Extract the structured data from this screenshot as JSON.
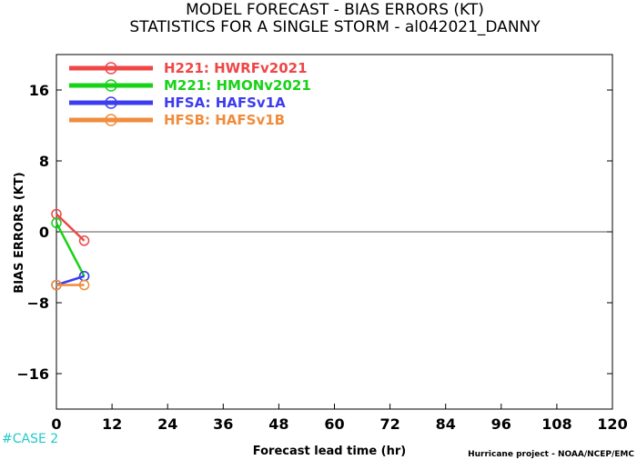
{
  "chart_data": {
    "type": "line",
    "title": "MODEL FORECAST - BIAS ERRORS (KT)",
    "subtitle": "STATISTICS FOR A SINGLE STORM - al042021_DANNY",
    "xlabel": "Forecast lead time (hr)",
    "ylabel": "BIAS ERRORS (KT)",
    "xlim": [
      0,
      120
    ],
    "ylim": [
      -20,
      20
    ],
    "xticks": [
      0,
      12,
      24,
      36,
      48,
      60,
      72,
      84,
      96,
      108,
      120
    ],
    "yticks": [
      -16,
      -8,
      0,
      8,
      16
    ],
    "zero_line": true,
    "grid": false,
    "legend_position": "top-left",
    "series": [
      {
        "name": "H221: HWRFv2021",
        "color": "#f04646",
        "x": [
          0,
          6
        ],
        "y": [
          2,
          -1
        ]
      },
      {
        "name": "M221: HMONv2021",
        "color": "#18d218",
        "x": [
          0,
          6
        ],
        "y": [
          1,
          -5
        ]
      },
      {
        "name": "HFSA: HAFSv1A",
        "color": "#3c3cf0",
        "x": [
          0,
          6
        ],
        "y": [
          -6,
          -5
        ]
      },
      {
        "name": "HFSB: HAFSv1B",
        "color": "#f08c3c",
        "x": [
          0,
          6
        ],
        "y": [
          -6,
          -6
        ]
      }
    ]
  },
  "footer": {
    "case_label": "#CASE 2",
    "credit": "Hurricane project - NOAA/NCEP/EMC"
  }
}
